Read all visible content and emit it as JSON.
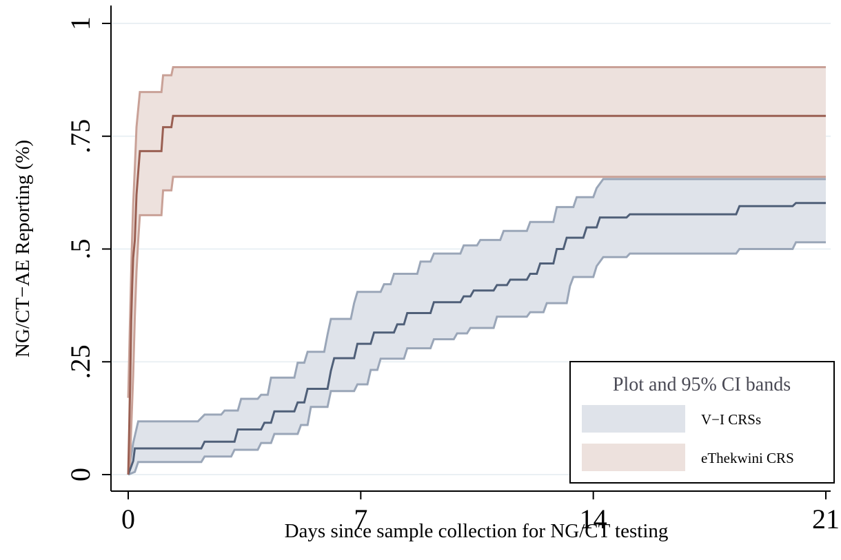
{
  "chart_data": {
    "type": "line",
    "xlabel": "Days since sample collection for NG/CT testing",
    "ylabel": "NG/CT−AE Reporting (%)",
    "xlim": [
      0,
      21
    ],
    "ylim": [
      0,
      1
    ],
    "x_ticks": [
      0,
      7,
      14,
      21
    ],
    "x_tick_labels": [
      "0",
      "7",
      "14",
      "21"
    ],
    "y_ticks": [
      0,
      0.25,
      0.5,
      0.75,
      1
    ],
    "y_tick_labels": [
      "0",
      ".25",
      ".5",
      ".75",
      "1"
    ],
    "grid": "horizontal",
    "legend": {
      "title": "Plot and 95% CI bands",
      "placement": "bottom-right",
      "entries": [
        "V−I CRSs",
        "eThekwini CRS"
      ]
    },
    "series": [
      {
        "name": "V−I CRSs",
        "line_color": "#4f5f78",
        "band_fill": "#dfe3ea",
        "band_edge": "#9aa6b8",
        "estimate": [
          [
            0,
            0
          ],
          [
            0.15,
            0.03
          ],
          [
            0.2,
            0.058
          ],
          [
            2.2,
            0.058
          ],
          [
            2.3,
            0.073
          ],
          [
            3.2,
            0.073
          ],
          [
            3.3,
            0.1
          ],
          [
            4.0,
            0.1
          ],
          [
            4.1,
            0.115
          ],
          [
            4.3,
            0.115
          ],
          [
            4.4,
            0.14
          ],
          [
            5.0,
            0.14
          ],
          [
            5.1,
            0.16
          ],
          [
            5.3,
            0.16
          ],
          [
            5.4,
            0.19
          ],
          [
            6.0,
            0.19
          ],
          [
            6.1,
            0.23
          ],
          [
            6.2,
            0.258
          ],
          [
            6.8,
            0.258
          ],
          [
            6.9,
            0.29
          ],
          [
            7.3,
            0.29
          ],
          [
            7.4,
            0.315
          ],
          [
            8.0,
            0.315
          ],
          [
            8.1,
            0.333
          ],
          [
            8.3,
            0.333
          ],
          [
            8.4,
            0.358
          ],
          [
            9.1,
            0.358
          ],
          [
            9.2,
            0.382
          ],
          [
            10.0,
            0.382
          ],
          [
            10.1,
            0.395
          ],
          [
            10.3,
            0.395
          ],
          [
            10.4,
            0.408
          ],
          [
            11.0,
            0.408
          ],
          [
            11.1,
            0.42
          ],
          [
            11.4,
            0.42
          ],
          [
            11.5,
            0.432
          ],
          [
            12.0,
            0.432
          ],
          [
            12.1,
            0.445
          ],
          [
            12.3,
            0.445
          ],
          [
            12.4,
            0.468
          ],
          [
            12.8,
            0.468
          ],
          [
            12.9,
            0.5
          ],
          [
            13.1,
            0.5
          ],
          [
            13.2,
            0.525
          ],
          [
            13.7,
            0.525
          ],
          [
            13.8,
            0.548
          ],
          [
            14.1,
            0.548
          ],
          [
            14.2,
            0.57
          ],
          [
            15.0,
            0.57
          ],
          [
            15.1,
            0.577
          ],
          [
            18.3,
            0.577
          ],
          [
            18.4,
            0.595
          ],
          [
            20.0,
            0.595
          ],
          [
            20.1,
            0.602
          ],
          [
            21,
            0.602
          ]
        ],
        "ci_upper": [
          [
            0,
            0
          ],
          [
            0.15,
            0.07
          ],
          [
            0.3,
            0.118
          ],
          [
            2.1,
            0.118
          ],
          [
            2.3,
            0.133
          ],
          [
            2.8,
            0.133
          ],
          [
            2.9,
            0.142
          ],
          [
            3.3,
            0.142
          ],
          [
            3.4,
            0.168
          ],
          [
            3.9,
            0.168
          ],
          [
            4.0,
            0.177
          ],
          [
            4.2,
            0.177
          ],
          [
            4.3,
            0.215
          ],
          [
            5.0,
            0.215
          ],
          [
            5.1,
            0.248
          ],
          [
            5.3,
            0.248
          ],
          [
            5.4,
            0.272
          ],
          [
            5.9,
            0.272
          ],
          [
            6.0,
            0.31
          ],
          [
            6.1,
            0.345
          ],
          [
            6.7,
            0.345
          ],
          [
            6.8,
            0.38
          ],
          [
            6.9,
            0.405
          ],
          [
            7.6,
            0.405
          ],
          [
            7.7,
            0.422
          ],
          [
            7.9,
            0.422
          ],
          [
            8.0,
            0.445
          ],
          [
            8.7,
            0.445
          ],
          [
            8.8,
            0.472
          ],
          [
            9.1,
            0.472
          ],
          [
            9.2,
            0.49
          ],
          [
            10.0,
            0.49
          ],
          [
            10.1,
            0.508
          ],
          [
            10.5,
            0.508
          ],
          [
            10.6,
            0.52
          ],
          [
            11.2,
            0.52
          ],
          [
            11.3,
            0.54
          ],
          [
            12.0,
            0.54
          ],
          [
            12.1,
            0.56
          ],
          [
            12.8,
            0.56
          ],
          [
            12.9,
            0.593
          ],
          [
            13.4,
            0.593
          ],
          [
            13.5,
            0.615
          ],
          [
            14.0,
            0.615
          ],
          [
            14.1,
            0.635
          ],
          [
            14.3,
            0.655
          ],
          [
            21,
            0.655
          ]
        ],
        "ci_lower": [
          [
            0,
            0
          ],
          [
            0.2,
            0.006
          ],
          [
            0.3,
            0.028
          ],
          [
            2.2,
            0.028
          ],
          [
            2.3,
            0.04
          ],
          [
            3.1,
            0.04
          ],
          [
            3.2,
            0.055
          ],
          [
            3.9,
            0.055
          ],
          [
            4.0,
            0.07
          ],
          [
            4.3,
            0.07
          ],
          [
            4.4,
            0.09
          ],
          [
            5.1,
            0.09
          ],
          [
            5.2,
            0.11
          ],
          [
            5.4,
            0.11
          ],
          [
            5.5,
            0.15
          ],
          [
            6.0,
            0.15
          ],
          [
            6.1,
            0.185
          ],
          [
            6.8,
            0.185
          ],
          [
            6.9,
            0.2
          ],
          [
            7.2,
            0.2
          ],
          [
            7.3,
            0.232
          ],
          [
            7.5,
            0.232
          ],
          [
            7.6,
            0.257
          ],
          [
            8.3,
            0.257
          ],
          [
            8.4,
            0.28
          ],
          [
            9.1,
            0.28
          ],
          [
            9.2,
            0.3
          ],
          [
            9.8,
            0.3
          ],
          [
            9.9,
            0.313
          ],
          [
            10.2,
            0.313
          ],
          [
            10.3,
            0.325
          ],
          [
            11.0,
            0.325
          ],
          [
            11.1,
            0.35
          ],
          [
            12.0,
            0.35
          ],
          [
            12.1,
            0.36
          ],
          [
            12.5,
            0.36
          ],
          [
            12.6,
            0.38
          ],
          [
            13.2,
            0.38
          ],
          [
            13.3,
            0.418
          ],
          [
            13.4,
            0.438
          ],
          [
            14.0,
            0.438
          ],
          [
            14.1,
            0.462
          ],
          [
            14.3,
            0.482
          ],
          [
            15.0,
            0.482
          ],
          [
            15.1,
            0.49
          ],
          [
            18.3,
            0.49
          ],
          [
            18.4,
            0.5
          ],
          [
            20.0,
            0.5
          ],
          [
            20.1,
            0.515
          ],
          [
            21,
            0.515
          ]
        ]
      },
      {
        "name": "eThekwini CRS",
        "line_color": "#9a5f52",
        "band_fill": "#ede1dd",
        "band_edge": "#c9a197",
        "estimate": [
          [
            0,
            0
          ],
          [
            0.03,
            0.1
          ],
          [
            0.06,
            0.2
          ],
          [
            0.09,
            0.34
          ],
          [
            0.12,
            0.42
          ],
          [
            0.15,
            0.48
          ],
          [
            0.2,
            0.52
          ],
          [
            0.25,
            0.62
          ],
          [
            0.3,
            0.67
          ],
          [
            0.35,
            0.717
          ],
          [
            1.0,
            0.717
          ],
          [
            1.05,
            0.77
          ],
          [
            1.3,
            0.77
          ],
          [
            1.35,
            0.795
          ],
          [
            21,
            0.795
          ]
        ],
        "ci_upper": [
          [
            0,
            0.17
          ],
          [
            0.05,
            0.33
          ],
          [
            0.1,
            0.48
          ],
          [
            0.15,
            0.6
          ],
          [
            0.2,
            0.68
          ],
          [
            0.25,
            0.77
          ],
          [
            0.3,
            0.81
          ],
          [
            0.35,
            0.848
          ],
          [
            1.0,
            0.848
          ],
          [
            1.05,
            0.885
          ],
          [
            1.3,
            0.885
          ],
          [
            1.35,
            0.903
          ],
          [
            21,
            0.903
          ]
        ],
        "ci_lower": [
          [
            0,
            0
          ],
          [
            0.05,
            0.02
          ],
          [
            0.1,
            0.12
          ],
          [
            0.15,
            0.22
          ],
          [
            0.2,
            0.35
          ],
          [
            0.25,
            0.45
          ],
          [
            0.3,
            0.52
          ],
          [
            0.35,
            0.575
          ],
          [
            1.0,
            0.575
          ],
          [
            1.05,
            0.63
          ],
          [
            1.3,
            0.63
          ],
          [
            1.35,
            0.66
          ],
          [
            21,
            0.66
          ]
        ]
      }
    ]
  }
}
